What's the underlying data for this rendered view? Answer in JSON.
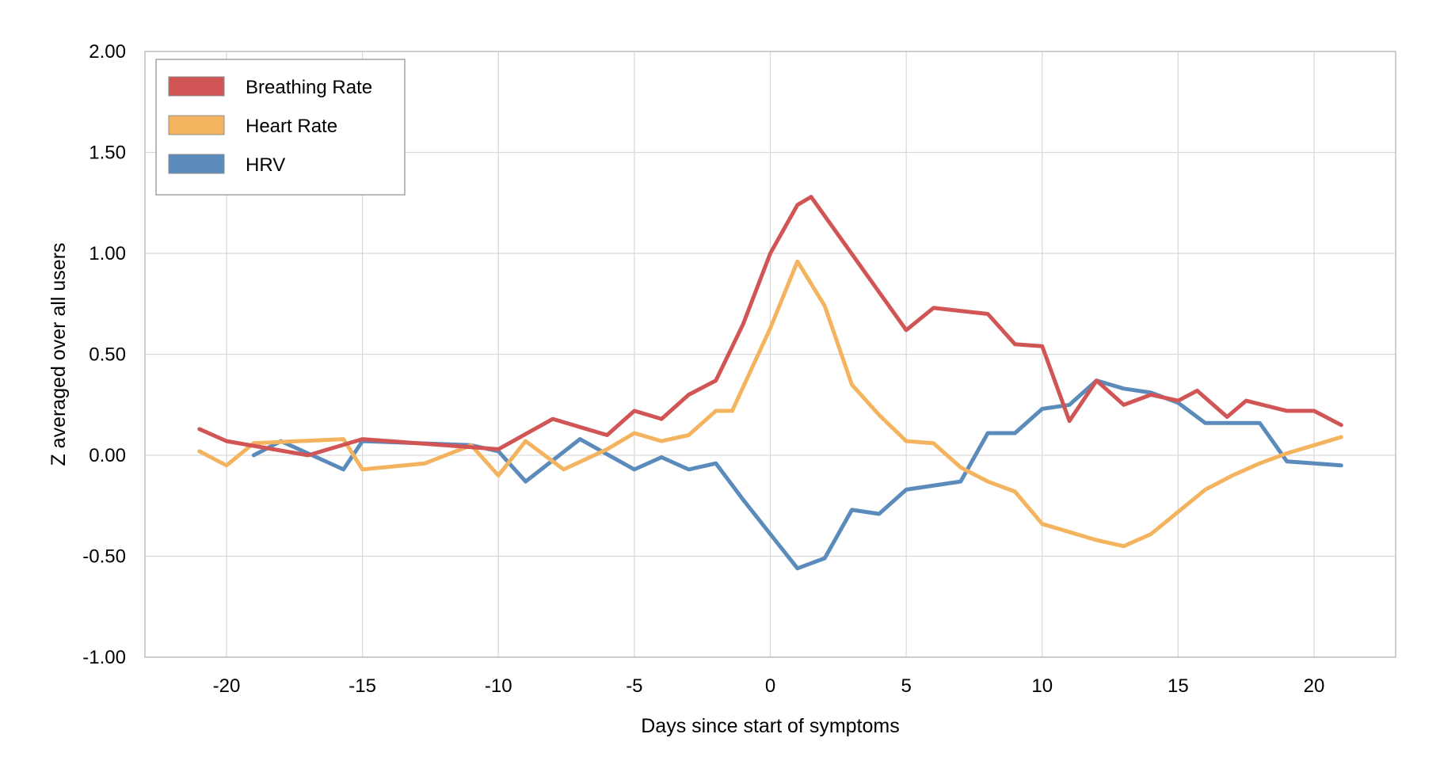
{
  "chart_data": {
    "type": "line",
    "xlabel": "Days since start of symptoms",
    "ylabel": "Z averaged over all users",
    "xlim": [
      -23,
      23
    ],
    "ylim": [
      -1.0,
      2.0
    ],
    "x_ticks": [
      -20,
      -15,
      -10,
      -5,
      0,
      5,
      10,
      15,
      20
    ],
    "x_tick_labels": [
      "-20",
      "-15",
      "-10",
      "-5",
      "0",
      "5",
      "10",
      "15",
      "20"
    ],
    "y_ticks": [
      -1.0,
      -0.5,
      0.0,
      0.5,
      1.0,
      1.5,
      2.0
    ],
    "y_tick_labels": [
      "-1.00",
      "-0.50",
      "0.00",
      "0.50",
      "1.00",
      "1.50",
      "2.00"
    ],
    "grid": true,
    "legend_position": "top-left",
    "series": [
      {
        "name": "Breathing Rate",
        "color": "#d15555",
        "x": [
          -21,
          -20,
          -17,
          -15,
          -11,
          -10,
          -8,
          -6,
          -5,
          -4,
          -3,
          -2,
          -1,
          0,
          1,
          1.5,
          5,
          6,
          8,
          9,
          10,
          11,
          12,
          13,
          14,
          15,
          15.7,
          16.8,
          17.5,
          19,
          20,
          21
        ],
        "y": [
          0.13,
          0.07,
          0.0,
          0.08,
          0.04,
          0.03,
          0.18,
          0.1,
          0.22,
          0.18,
          0.3,
          0.37,
          0.65,
          1.0,
          1.24,
          1.28,
          0.62,
          0.73,
          0.7,
          0.55,
          0.54,
          0.17,
          0.37,
          0.25,
          0.3,
          0.27,
          0.32,
          0.19,
          0.27,
          0.22,
          0.22,
          0.15
        ]
      },
      {
        "name": "Heart Rate",
        "color": "#f4b35e",
        "x": [
          -21,
          -20,
          -19,
          -15.7,
          -15,
          -12.7,
          -11,
          -10,
          -9,
          -7.6,
          -6,
          -5,
          -4,
          -3,
          -2,
          -1.4,
          0,
          1,
          2,
          3,
          4,
          5,
          6,
          7,
          8,
          9,
          10,
          12,
          13,
          14,
          15,
          16,
          17,
          18,
          19,
          20,
          21
        ],
        "y": [
          0.02,
          -0.05,
          0.06,
          0.08,
          -0.07,
          -0.04,
          0.05,
          -0.1,
          0.07,
          -0.07,
          0.03,
          0.11,
          0.07,
          0.1,
          0.22,
          0.22,
          0.63,
          0.96,
          0.74,
          0.35,
          0.2,
          0.07,
          0.06,
          -0.06,
          -0.13,
          -0.18,
          -0.34,
          -0.42,
          -0.45,
          -0.39,
          -0.28,
          -0.17,
          -0.1,
          -0.04,
          0.01,
          0.05,
          0.09
        ]
      },
      {
        "name": "HRV",
        "color": "#5b8bba",
        "x": [
          -19,
          -18,
          -15.7,
          -15,
          -11,
          -10,
          -9,
          -7,
          -5,
          -4,
          -3,
          -2,
          -1,
          0,
          1,
          2,
          3,
          4,
          5,
          7,
          8,
          9,
          10,
          11,
          12,
          13,
          14,
          15,
          16,
          17,
          18,
          19,
          20,
          21
        ],
        "y": [
          0.0,
          0.07,
          -0.07,
          0.07,
          0.05,
          0.02,
          -0.13,
          0.08,
          -0.07,
          -0.01,
          -0.07,
          -0.04,
          -0.22,
          -0.39,
          -0.56,
          -0.51,
          -0.27,
          -0.29,
          -0.17,
          -0.13,
          0.11,
          0.11,
          0.23,
          0.25,
          0.37,
          0.33,
          0.31,
          0.26,
          0.16,
          0.16,
          0.16,
          -0.03,
          -0.04,
          -0.05
        ]
      }
    ]
  }
}
